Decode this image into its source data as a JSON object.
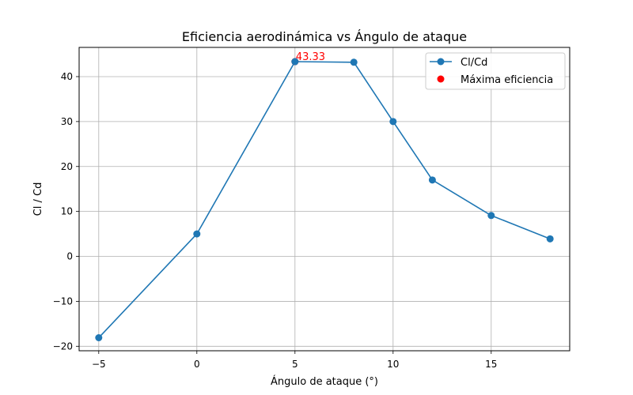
{
  "chart_data": {
    "type": "line",
    "title": "Eficiencia aerodinámica vs Ángulo de ataque",
    "xlabel": "Ángulo de ataque (°)",
    "ylabel": "Cl / Cd",
    "xlim": [
      -6.0,
      19.0
    ],
    "ylim": [
      -21.0,
      46.5
    ],
    "xticks": [
      -5,
      0,
      5,
      10,
      15
    ],
    "yticks": [
      -20,
      -10,
      0,
      10,
      20,
      30,
      40
    ],
    "xtick_labels": [
      "−5",
      "0",
      "5",
      "10",
      "15"
    ],
    "ytick_labels": [
      "−20",
      "−10",
      "0",
      "10",
      "20",
      "30",
      "40"
    ],
    "grid": true,
    "legend_position": "top-right",
    "series": [
      {
        "name": "Cl/Cd",
        "color": "#1f77b4",
        "marker": "circle",
        "x": [
          -5,
          0,
          5,
          8,
          10,
          12,
          15,
          18
        ],
        "y": [
          -18.1,
          5.0,
          43.33,
          43.2,
          30.0,
          17.0,
          9.1,
          3.9
        ]
      },
      {
        "name": "Máxima eficiencia",
        "color": "#ff0000",
        "marker": "circle",
        "type": "scatter",
        "x": [
          5
        ],
        "y": [
          43.33
        ]
      }
    ],
    "annotations": [
      {
        "text": "43.33",
        "x": 5,
        "y": 43.33,
        "color": "#ff0000"
      }
    ]
  }
}
